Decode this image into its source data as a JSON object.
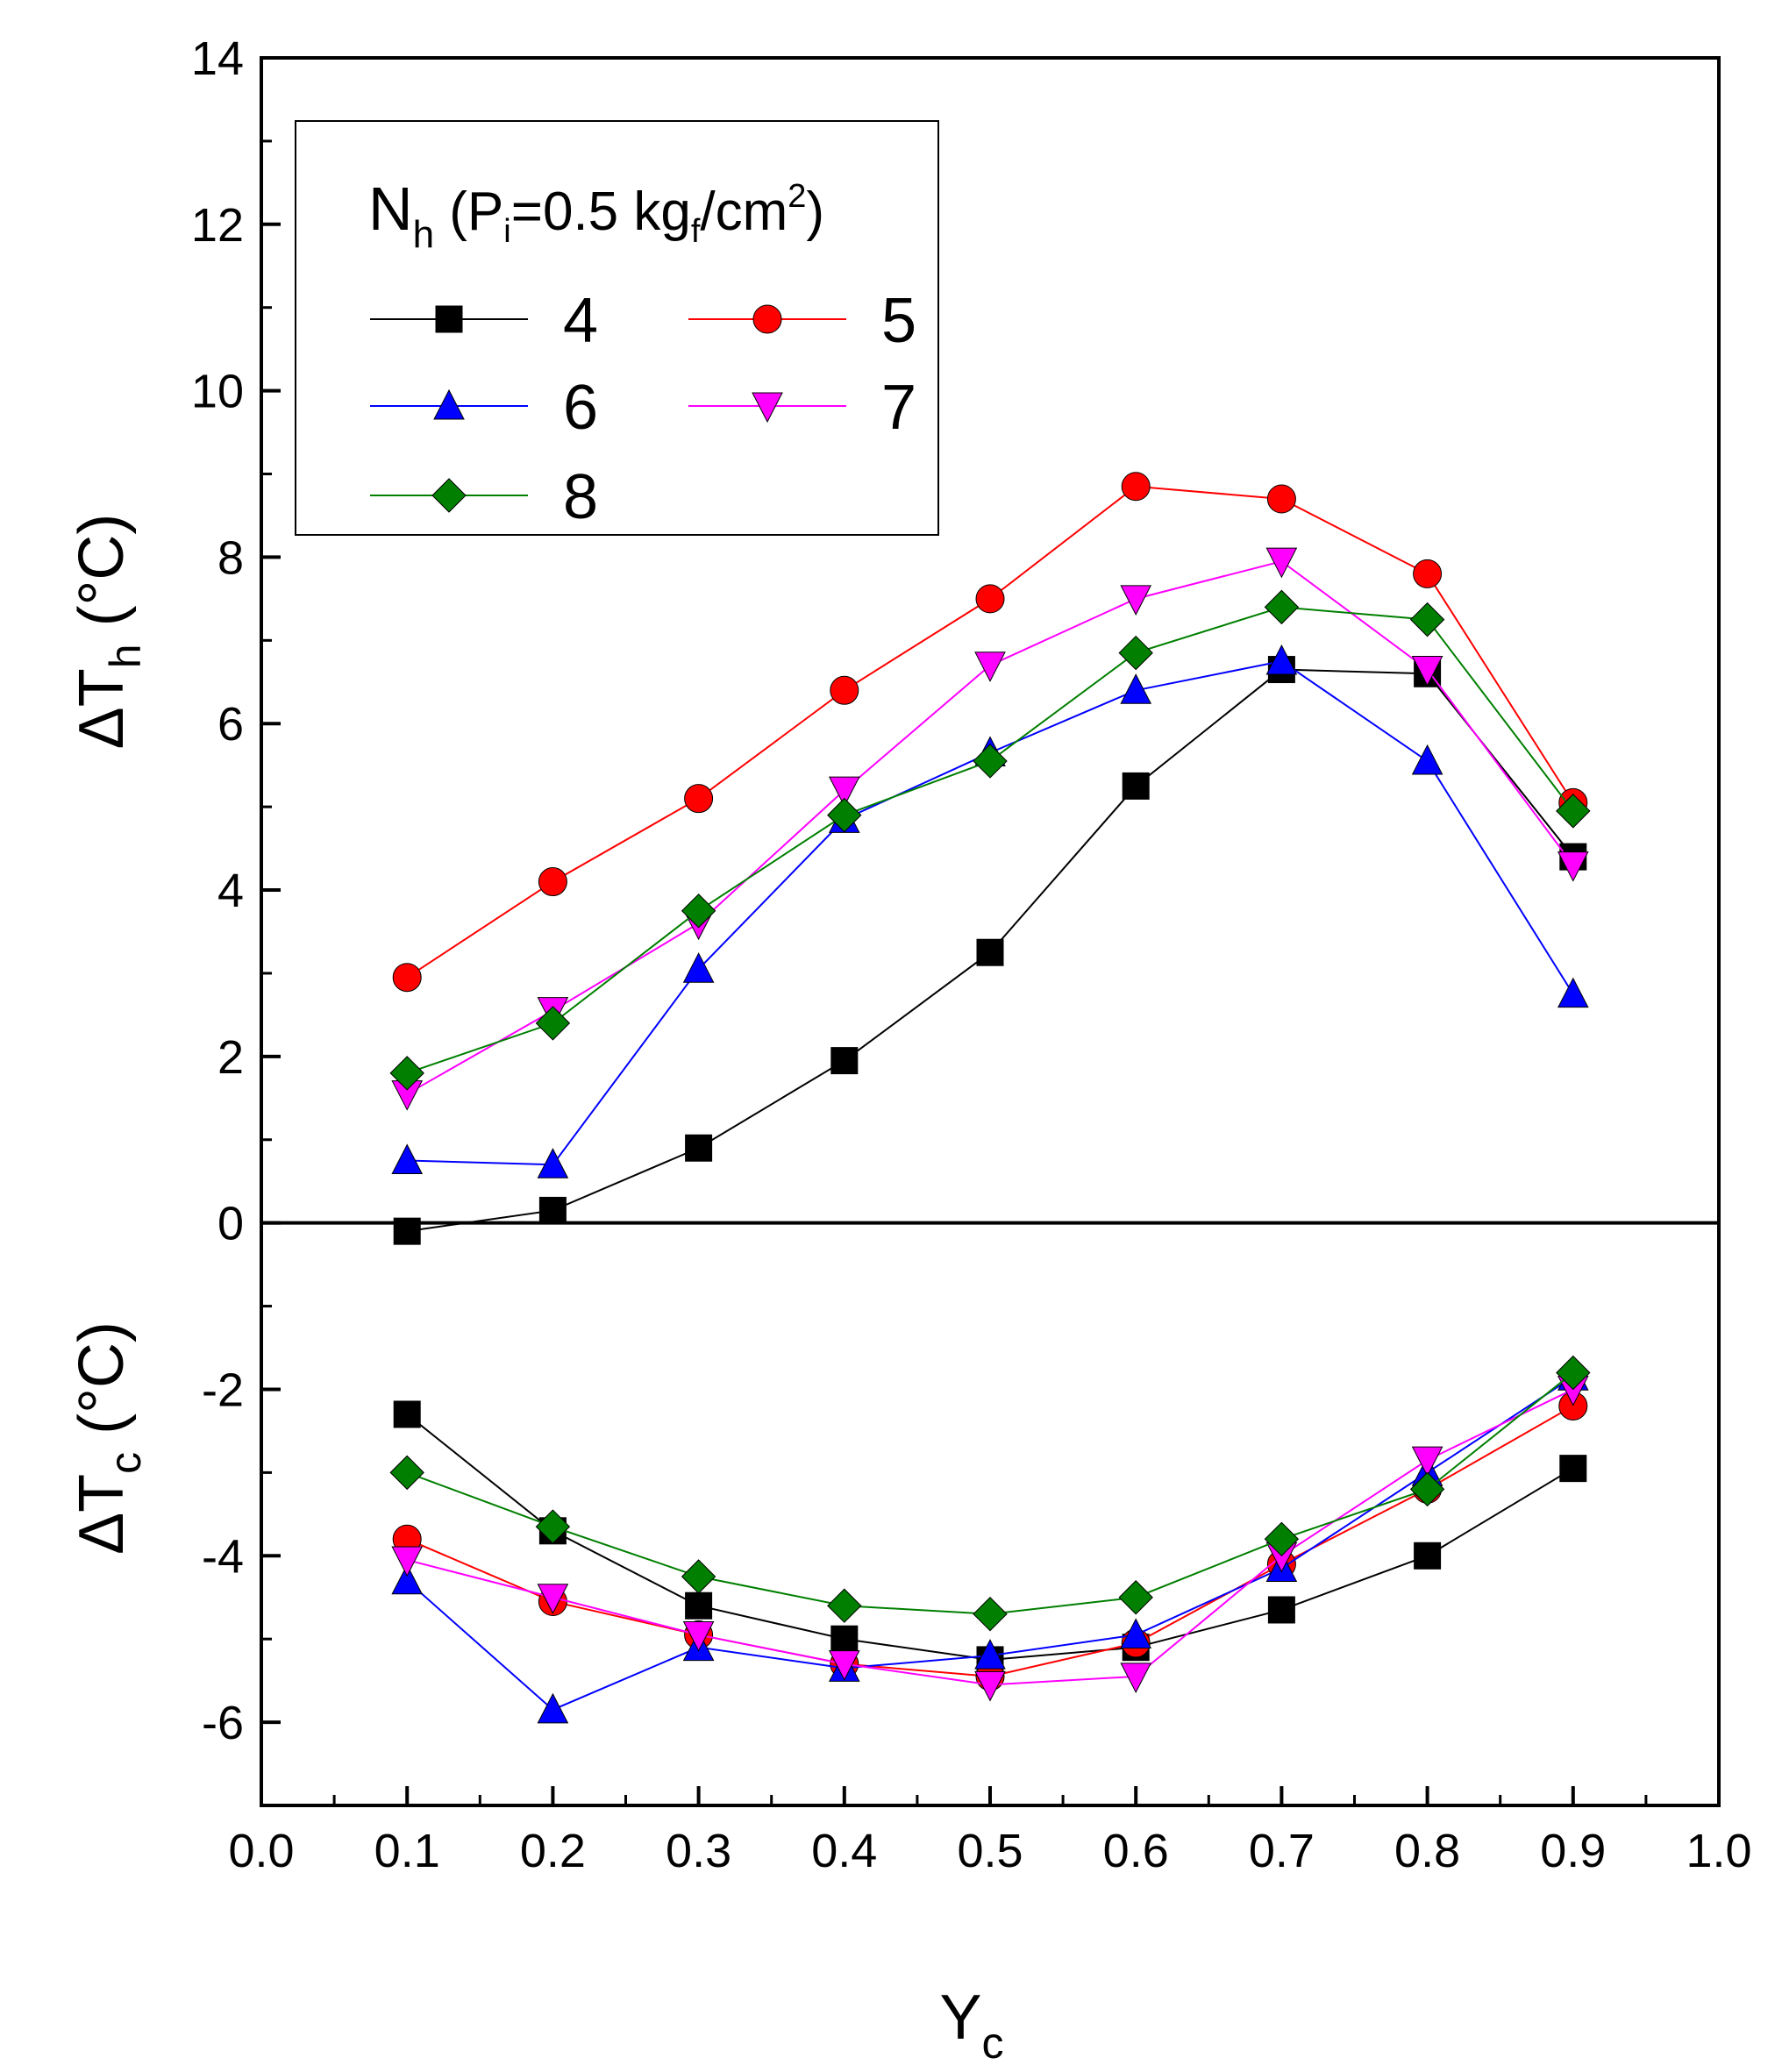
{
  "chart_data": {
    "type": "line",
    "title": "",
    "xlabel": "Y",
    "xlabel_sub": "c",
    "ylabel_top": {
      "main": "ΔT",
      "sub": "h",
      "unit": " (°C)"
    },
    "ylabel_bottom": {
      "main": "ΔT",
      "sub": "c",
      "unit": " (°C)"
    },
    "xlim": [
      0.0,
      1.0
    ],
    "ylim": [
      -7,
      14
    ],
    "x_ticks": [
      "0.0",
      "0.1",
      "0.2",
      "0.3",
      "0.4",
      "0.5",
      "0.6",
      "0.7",
      "0.8",
      "0.9",
      "1.0"
    ],
    "y_ticks": [
      "14",
      "12",
      "10",
      "8",
      "6",
      "4",
      "2",
      "0",
      "-2",
      "-4",
      "-6"
    ],
    "y_tick_values": [
      14,
      12,
      10,
      8,
      6,
      4,
      2,
      0,
      -2,
      -4,
      -6
    ],
    "legend": {
      "title_main": "N",
      "title_sub": "h",
      "title_rest_1": " (P",
      "title_sub2": "i",
      "title_rest_2": "=0.5 kg",
      "title_sub3": "f",
      "title_rest_3": "/cm",
      "title_sup": "2",
      "title_rest_4": ")",
      "placement": "top-left"
    },
    "x": [
      0.1,
      0.2,
      0.3,
      0.4,
      0.5,
      0.6,
      0.7,
      0.8,
      0.9
    ],
    "series": [
      {
        "name": "4",
        "color": "#000000",
        "marker": "square",
        "hot": [
          -0.1,
          0.15,
          0.9,
          1.95,
          3.25,
          5.25,
          6.65,
          6.6,
          4.4
        ],
        "cold": [
          -2.3,
          -3.7,
          -4.6,
          -5.0,
          -5.25,
          -5.1,
          -4.65,
          -4.0,
          -2.95
        ]
      },
      {
        "name": "5",
        "color": "#ff0000",
        "marker": "circle",
        "hot": [
          2.95,
          4.1,
          5.1,
          6.4,
          7.5,
          8.85,
          8.7,
          7.8,
          5.05
        ],
        "cold": [
          -3.8,
          -4.55,
          -4.95,
          -5.3,
          -5.45,
          -5.05,
          -4.1,
          -3.2,
          -2.2
        ]
      },
      {
        "name": "6",
        "color": "#0000ff",
        "marker": "triangle-up",
        "hot": [
          0.75,
          0.7,
          3.05,
          4.85,
          5.65,
          6.4,
          6.75,
          5.55,
          2.75
        ],
        "cold": [
          -4.3,
          -5.85,
          -5.1,
          -5.35,
          -5.2,
          -4.95,
          -4.15,
          -3.0,
          -1.85
        ]
      },
      {
        "name": "7",
        "color": "#ff00ff",
        "marker": "triangle-down",
        "hot": [
          1.55,
          2.55,
          3.6,
          5.2,
          6.7,
          7.5,
          7.95,
          6.65,
          4.3
        ],
        "cold": [
          -4.05,
          -4.5,
          -4.95,
          -5.3,
          -5.55,
          -5.45,
          -4.0,
          -2.85,
          -2.0
        ]
      },
      {
        "name": "8",
        "color": "#007f00",
        "marker": "diamond",
        "hot": [
          1.8,
          2.4,
          3.75,
          4.9,
          5.55,
          6.85,
          7.4,
          7.25,
          4.95
        ],
        "cold": [
          -3.0,
          -3.65,
          -4.25,
          -4.6,
          -4.7,
          -4.5,
          -3.8,
          -3.2,
          -1.8
        ]
      }
    ]
  }
}
